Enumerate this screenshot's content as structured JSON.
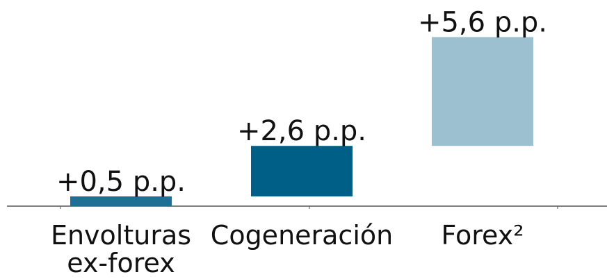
{
  "chart_data": {
    "type": "waterfall",
    "categories": [
      "Envolturas ex-forex",
      "Cogeneración",
      "Forex²"
    ],
    "values": [
      0.5,
      2.6,
      5.6
    ],
    "value_labels": [
      "+0,5 p.p.",
      "+2,6 p.p.",
      "+5,6 p.p."
    ],
    "colors": [
      "#1e6f95",
      "#005f87",
      "#9dc0d0"
    ]
  }
}
